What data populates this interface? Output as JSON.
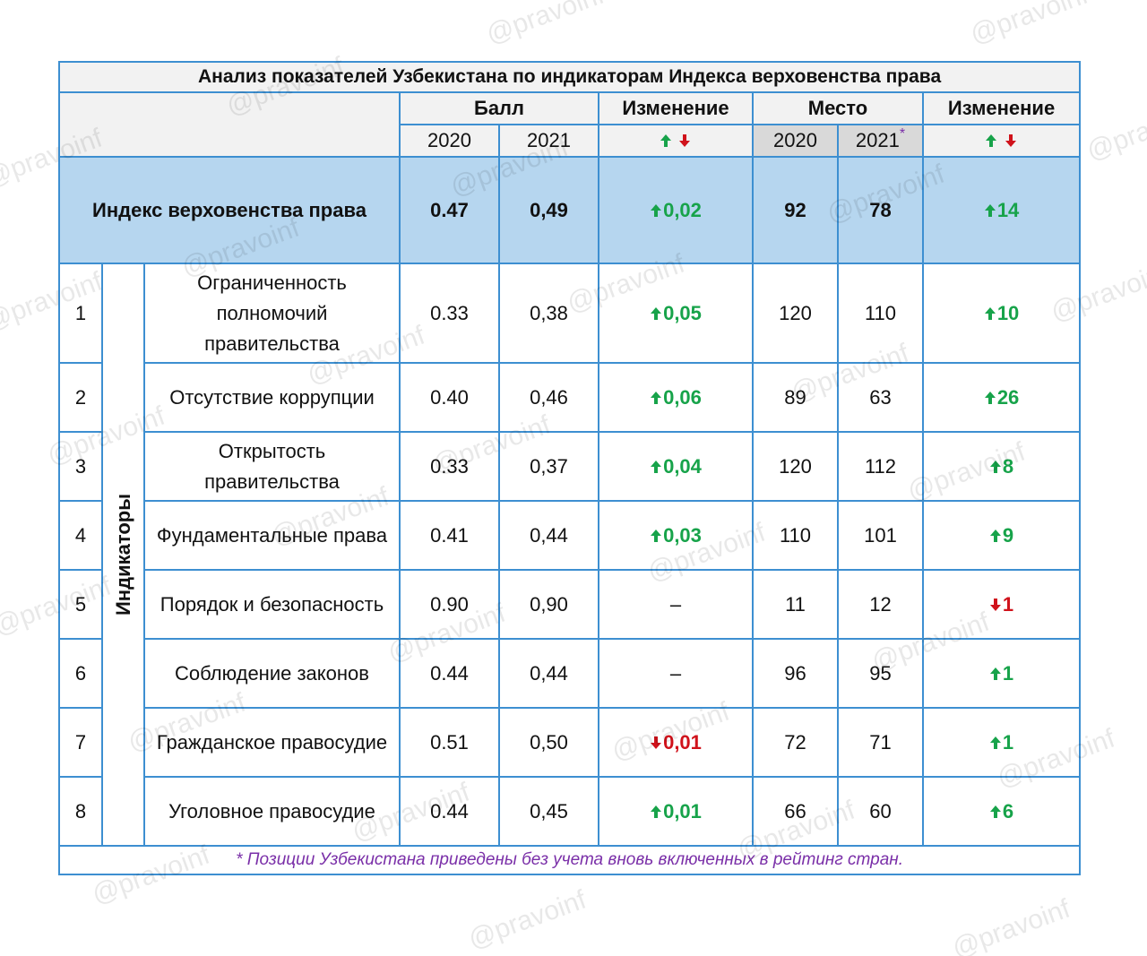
{
  "table": {
    "title": "Анализ показателей Узбекистана по индикаторам Индекса верховенства права",
    "header": {
      "score": "Балл",
      "score_change": "Изменение",
      "rank": "Место",
      "rank_change": "Изменение",
      "score_years": [
        "2020",
        "2021"
      ],
      "rank_years": [
        "2020",
        "2021"
      ],
      "rank_footnote_mark": "*"
    },
    "index_row": {
      "name": "Индекс верховенства права",
      "s2020": "0.47",
      "s2021": "0,49",
      "ds": "0,02",
      "ds_dir": "up",
      "r2020": "92",
      "r2021": "78",
      "dr": "14",
      "dr_dir": "up"
    },
    "group_label": "Индикаторы",
    "rows": [
      {
        "num": "1",
        "name": "Ограниченность полномочий правительства",
        "s2020": "0.33",
        "s2021": "0,38",
        "ds": "0,05",
        "ds_dir": "up",
        "r2020": "120",
        "r2021": "110",
        "dr": "10",
        "dr_dir": "up"
      },
      {
        "num": "2",
        "name": "Отсутствие коррупции",
        "s2020": "0.40",
        "s2021": "0,46",
        "ds": "0,06",
        "ds_dir": "up",
        "r2020": "89",
        "r2021": "63",
        "dr": "26",
        "dr_dir": "up"
      },
      {
        "num": "3",
        "name": "Открытость правительства",
        "s2020": "0.33",
        "s2021": "0,37",
        "ds": "0,04",
        "ds_dir": "up",
        "r2020": "120",
        "r2021": "112",
        "dr": "8",
        "dr_dir": "up"
      },
      {
        "num": "4",
        "name": "Фундаментальные права",
        "s2020": "0.41",
        "s2021": "0,44",
        "ds": "0,03",
        "ds_dir": "up",
        "r2020": "110",
        "r2021": "101",
        "dr": "9",
        "dr_dir": "up"
      },
      {
        "num": "5",
        "name": "Порядок и безопасность",
        "s2020": "0.90",
        "s2021": "0,90",
        "ds": "–",
        "r2020": "11",
        "r2021": "12",
        "dr": "1",
        "dr_dir": "down"
      },
      {
        "num": "6",
        "name": "Соблюдение законов",
        "s2020": "0.44",
        "s2021": "0,44",
        "ds": "–",
        "r2020": "96",
        "r2021": "95",
        "dr": "1",
        "dr_dir": "up"
      },
      {
        "num": "7",
        "name": "Гражданское правосудие",
        "s2020": "0.51",
        "s2021": "0,50",
        "ds": "0,01",
        "ds_dir": "down",
        "r2020": "72",
        "r2021": "71",
        "dr": "1",
        "dr_dir": "up"
      },
      {
        "num": "8",
        "name": "Уголовное правосудие",
        "s2020": "0.44",
        "s2021": "0,45",
        "ds": "0,01",
        "ds_dir": "up",
        "r2020": "66",
        "r2021": "60",
        "dr": "6",
        "dr_dir": "up"
      }
    ],
    "footnote": "* Позиции Узбекистана приведены без учета вновь включенных в рейтинг стран.",
    "watermark": "@pravoinf"
  }
}
